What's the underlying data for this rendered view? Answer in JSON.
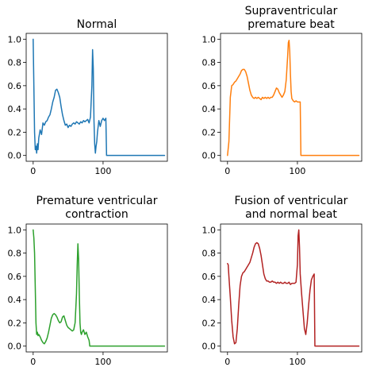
{
  "chart_data": [
    {
      "type": "line",
      "title": [
        "Normal"
      ],
      "xlabel": "",
      "ylabel": "",
      "xlim": [
        -10,
        192
      ],
      "ylim": [
        -0.05,
        1.05
      ],
      "xticks": [
        "0",
        "100"
      ],
      "yticks": [
        "0.0",
        "0.2",
        "0.4",
        "0.6",
        "0.8",
        "1.0"
      ],
      "color": "#1f77b4",
      "series": [
        {
          "x": [
            0,
            1,
            2,
            3,
            4,
            5,
            6,
            7,
            8,
            10,
            12,
            14,
            16,
            18,
            20,
            22,
            24,
            26,
            28,
            30,
            32,
            34,
            36,
            38,
            40,
            42,
            44,
            46,
            48,
            50,
            52,
            54,
            56,
            58,
            60,
            62,
            64,
            66,
            68,
            70,
            72,
            74,
            76,
            78,
            80,
            82,
            84,
            85,
            86,
            87,
            88,
            89,
            90,
            91,
            92,
            94,
            96,
            98,
            100,
            102,
            104,
            105,
            106,
            188
          ],
          "y": [
            1.0,
            0.6,
            0.2,
            0.05,
            0.08,
            0.02,
            0.1,
            0.05,
            0.15,
            0.22,
            0.18,
            0.28,
            0.26,
            0.29,
            0.3,
            0.33,
            0.35,
            0.4,
            0.46,
            0.5,
            0.56,
            0.57,
            0.54,
            0.5,
            0.42,
            0.35,
            0.3,
            0.26,
            0.27,
            0.24,
            0.26,
            0.25,
            0.27,
            0.28,
            0.27,
            0.29,
            0.28,
            0.27,
            0.29,
            0.28,
            0.3,
            0.29,
            0.3,
            0.31,
            0.28,
            0.33,
            0.6,
            0.91,
            0.75,
            0.3,
            0.1,
            0.02,
            0.08,
            0.12,
            0.2,
            0.3,
            0.25,
            0.3,
            0.32,
            0.3,
            0.32,
            0.0,
            0.0,
            0.0
          ]
        }
      ]
    },
    {
      "type": "line",
      "title": [
        "Supraventricular",
        "premature beat"
      ],
      "xlabel": "",
      "ylabel": "",
      "xlim": [
        -10,
        192
      ],
      "ylim": [
        -0.05,
        1.05
      ],
      "xticks": [
        "0",
        "100"
      ],
      "yticks": [
        "0.0",
        "0.2",
        "0.4",
        "0.6",
        "0.8",
        "1.0"
      ],
      "color": "#ff7f0e",
      "series": [
        {
          "x": [
            0,
            2,
            4,
            6,
            8,
            10,
            12,
            14,
            16,
            18,
            20,
            22,
            24,
            26,
            28,
            30,
            32,
            34,
            36,
            38,
            40,
            42,
            44,
            46,
            48,
            50,
            52,
            54,
            56,
            58,
            60,
            62,
            64,
            66,
            68,
            70,
            72,
            74,
            76,
            78,
            80,
            82,
            84,
            86,
            87,
            88,
            89,
            90,
            91,
            92,
            94,
            96,
            98,
            100,
            102,
            104,
            105,
            106,
            188
          ],
          "y": [
            0.0,
            0.12,
            0.5,
            0.6,
            0.61,
            0.63,
            0.64,
            0.66,
            0.68,
            0.7,
            0.73,
            0.74,
            0.74,
            0.72,
            0.68,
            0.62,
            0.56,
            0.52,
            0.5,
            0.49,
            0.5,
            0.49,
            0.5,
            0.49,
            0.48,
            0.5,
            0.49,
            0.5,
            0.49,
            0.5,
            0.49,
            0.5,
            0.5,
            0.52,
            0.55,
            0.58,
            0.57,
            0.54,
            0.52,
            0.5,
            0.52,
            0.55,
            0.65,
            0.85,
            0.97,
            0.99,
            0.9,
            0.7,
            0.55,
            0.49,
            0.47,
            0.46,
            0.47,
            0.46,
            0.46,
            0.46,
            0.0,
            0.0,
            0.0
          ]
        }
      ]
    },
    {
      "type": "line",
      "title": [
        "Premature ventricular",
        "contraction"
      ],
      "xlabel": "",
      "ylabel": "",
      "xlim": [
        -10,
        192
      ],
      "ylim": [
        -0.05,
        1.05
      ],
      "xticks": [
        "0",
        "100"
      ],
      "yticks": [
        "0.0",
        "0.2",
        "0.4",
        "0.6",
        "0.8",
        "1.0"
      ],
      "color": "#2ca02c",
      "series": [
        {
          "x": [
            0,
            1,
            2,
            3,
            4,
            5,
            6,
            7,
            8,
            10,
            12,
            14,
            16,
            18,
            20,
            22,
            24,
            26,
            28,
            30,
            32,
            34,
            36,
            38,
            40,
            42,
            44,
            46,
            48,
            50,
            52,
            54,
            56,
            58,
            60,
            62,
            63,
            64,
            65,
            66,
            67,
            68,
            69,
            70,
            72,
            74,
            76,
            78,
            80,
            81,
            82,
            188
          ],
          "y": [
            1.0,
            0.93,
            0.8,
            0.5,
            0.2,
            0.1,
            0.12,
            0.09,
            0.1,
            0.08,
            0.05,
            0.03,
            0.02,
            0.04,
            0.07,
            0.12,
            0.18,
            0.24,
            0.27,
            0.28,
            0.27,
            0.25,
            0.22,
            0.2,
            0.21,
            0.25,
            0.26,
            0.22,
            0.18,
            0.16,
            0.15,
            0.14,
            0.13,
            0.14,
            0.2,
            0.45,
            0.7,
            0.88,
            0.75,
            0.45,
            0.2,
            0.12,
            0.1,
            0.12,
            0.14,
            0.1,
            0.12,
            0.08,
            0.05,
            0.0,
            0.0,
            0.0
          ]
        }
      ]
    },
    {
      "type": "line",
      "title": [
        "Fusion of ventricular",
        "and normal beat"
      ],
      "xlabel": "",
      "ylabel": "",
      "xlim": [
        -10,
        192
      ],
      "ylim": [
        -0.05,
        1.05
      ],
      "xticks": [
        "0",
        "100"
      ],
      "yticks": [
        "0.0",
        "0.2",
        "0.4",
        "0.6",
        "0.8",
        "1.0"
      ],
      "color": "#b22222",
      "series": [
        {
          "x": [
            0,
            1,
            2,
            4,
            6,
            8,
            10,
            12,
            14,
            16,
            18,
            20,
            22,
            24,
            26,
            28,
            30,
            32,
            34,
            36,
            38,
            40,
            42,
            44,
            46,
            48,
            50,
            52,
            54,
            56,
            58,
            60,
            62,
            64,
            66,
            68,
            70,
            72,
            74,
            76,
            78,
            80,
            82,
            84,
            86,
            88,
            90,
            92,
            94,
            96,
            98,
            100,
            101,
            102,
            103,
            104,
            106,
            108,
            110,
            112,
            114,
            116,
            118,
            120,
            122,
            124,
            125,
            126,
            188
          ],
          "y": [
            0.71,
            0.7,
            0.6,
            0.42,
            0.22,
            0.08,
            0.02,
            0.03,
            0.15,
            0.35,
            0.52,
            0.6,
            0.63,
            0.64,
            0.66,
            0.68,
            0.7,
            0.72,
            0.76,
            0.8,
            0.85,
            0.88,
            0.89,
            0.88,
            0.84,
            0.78,
            0.7,
            0.62,
            0.58,
            0.56,
            0.56,
            0.55,
            0.55,
            0.56,
            0.55,
            0.55,
            0.54,
            0.55,
            0.54,
            0.55,
            0.54,
            0.54,
            0.55,
            0.54,
            0.54,
            0.55,
            0.53,
            0.54,
            0.54,
            0.54,
            0.55,
            0.7,
            0.95,
            1.0,
            0.85,
            0.62,
            0.45,
            0.3,
            0.15,
            0.1,
            0.2,
            0.35,
            0.48,
            0.57,
            0.6,
            0.62,
            0.0,
            0.0,
            0.0
          ]
        }
      ]
    }
  ]
}
